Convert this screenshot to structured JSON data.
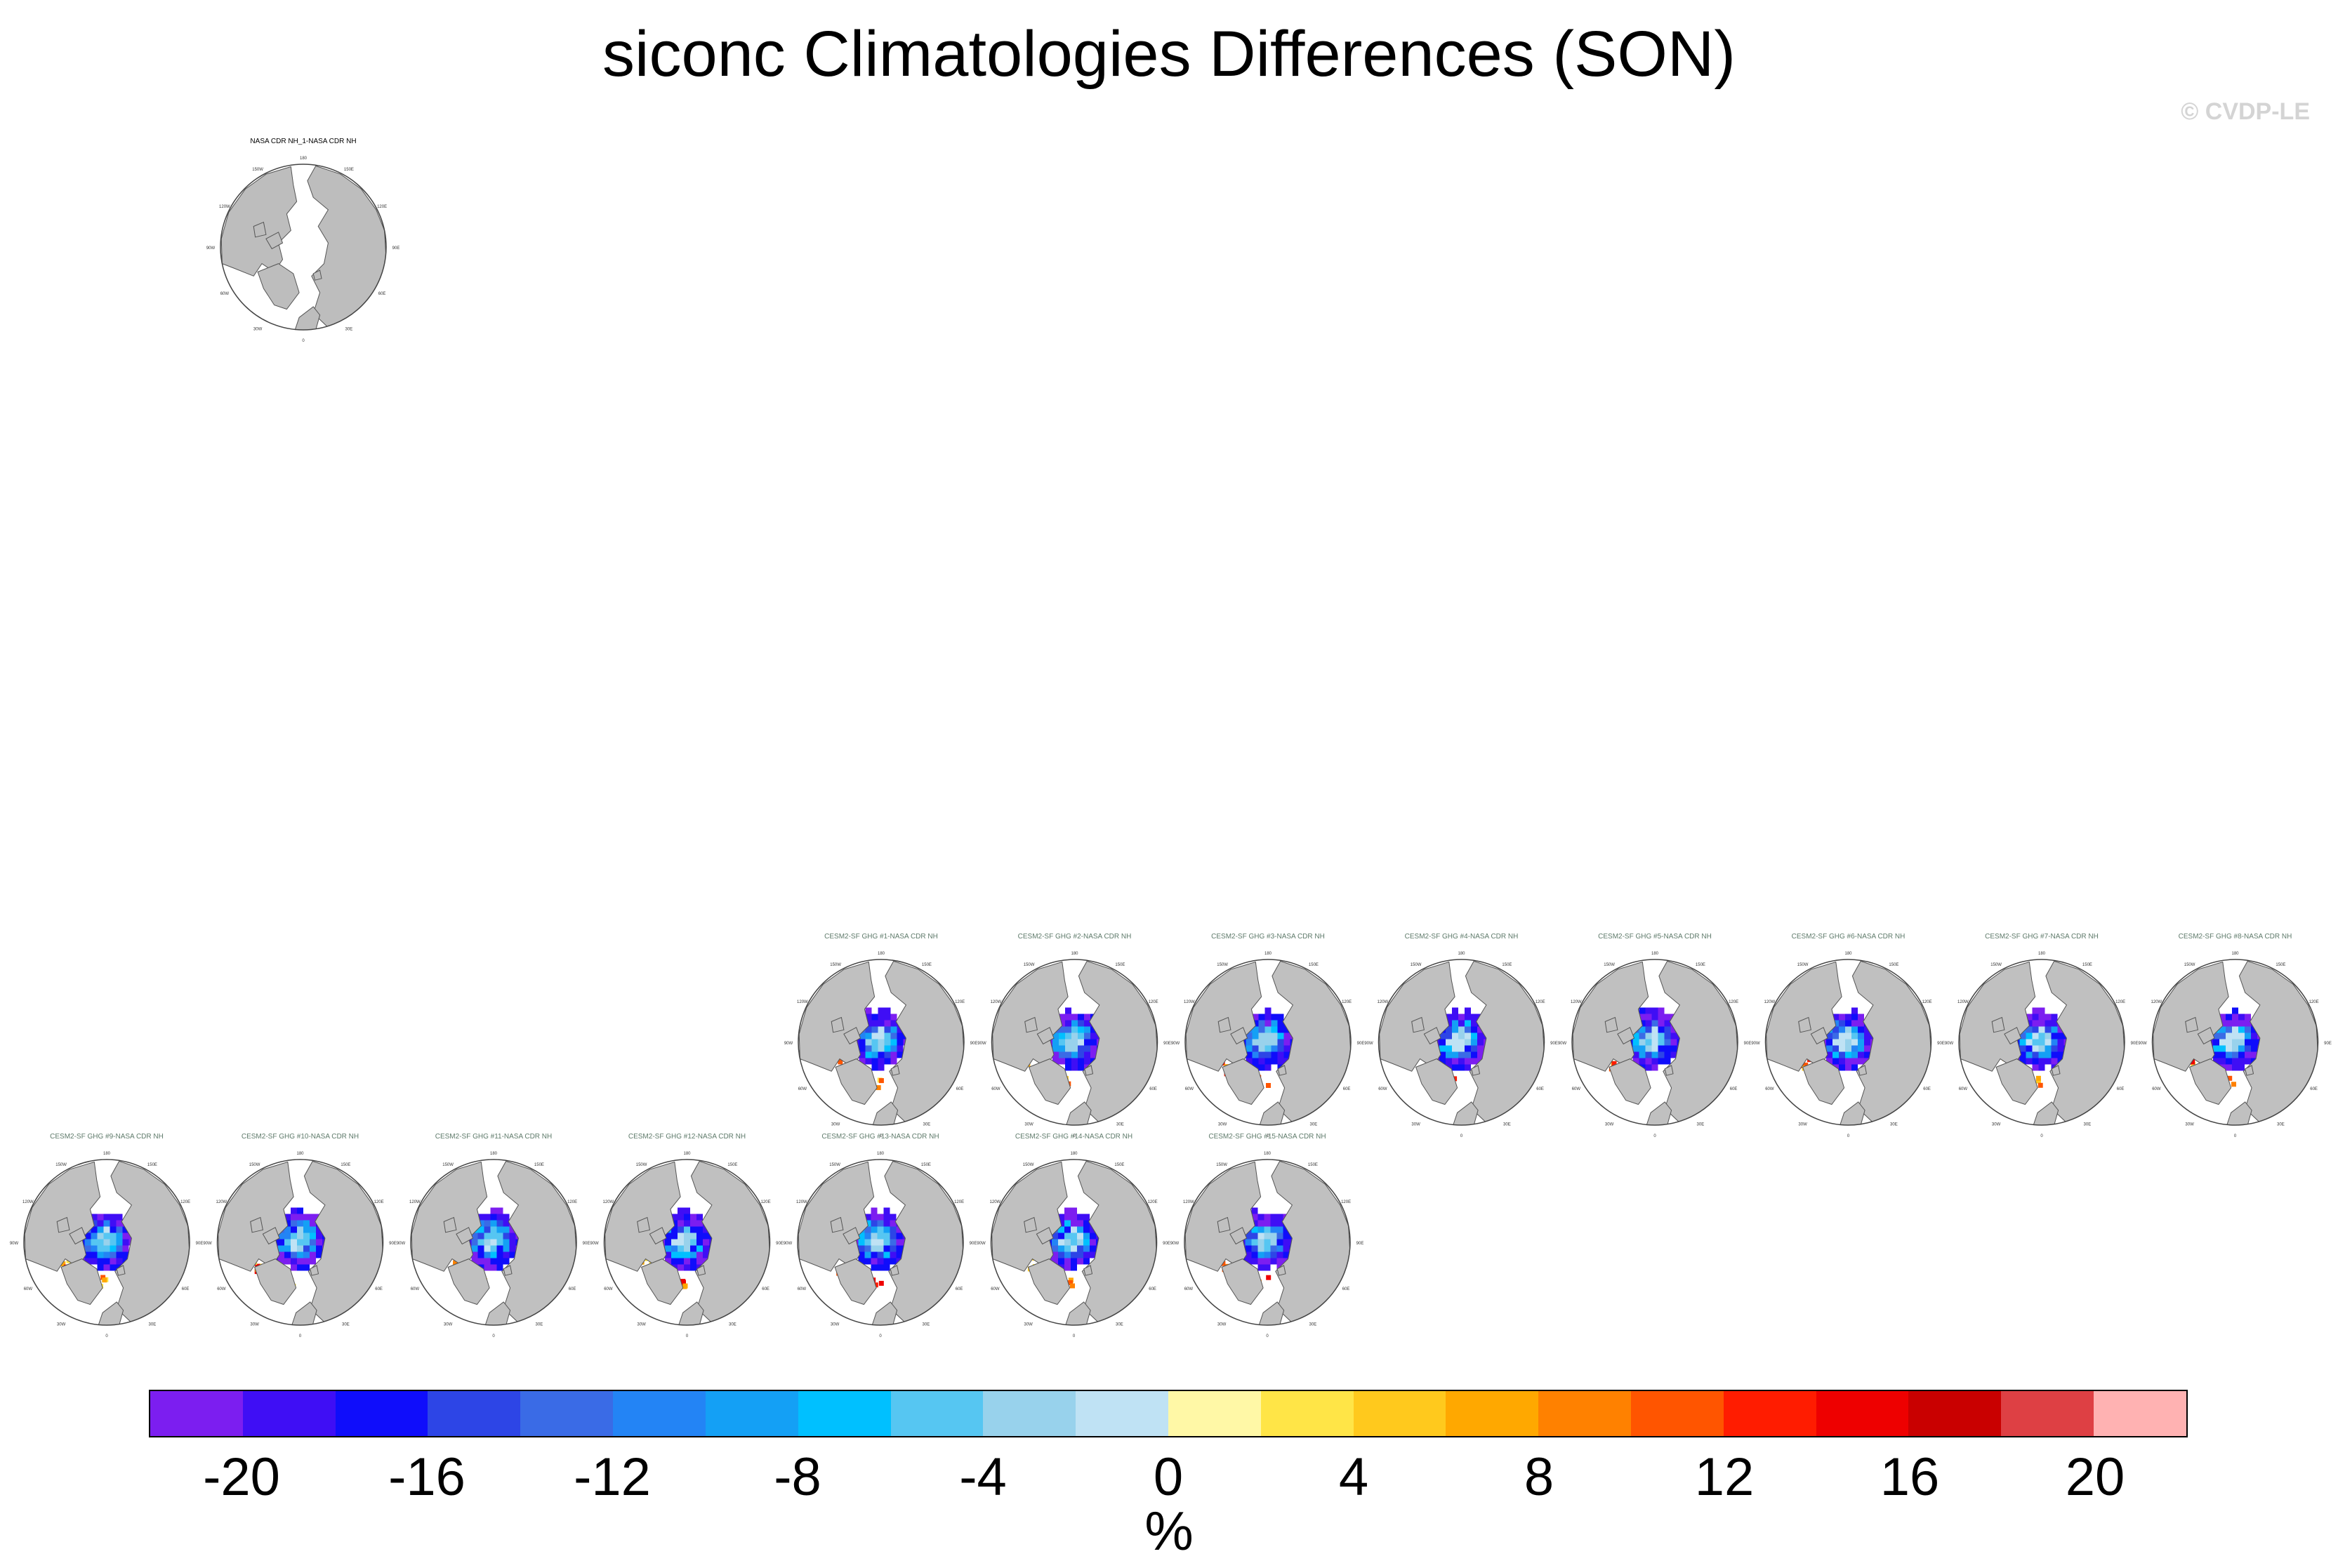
{
  "title": "siconc Climatologies Differences (SON)",
  "watermark": "© CVDP-LE",
  "chart_data": {
    "type": "heatmap",
    "projection": "north polar stereographic",
    "panels": [
      {
        "title": "NASA CDR NH_1-NASA CDR NH",
        "kind": "obs"
      },
      {
        "title": "CESM2-SF GHG #1-NASA CDR NH",
        "kind": "member"
      },
      {
        "title": "CESM2-SF GHG #2-NASA CDR NH",
        "kind": "member"
      },
      {
        "title": "CESM2-SF GHG #3-NASA CDR NH",
        "kind": "member"
      },
      {
        "title": "CESM2-SF GHG #4-NASA CDR NH",
        "kind": "member"
      },
      {
        "title": "CESM2-SF GHG #5-NASA CDR NH",
        "kind": "member"
      },
      {
        "title": "CESM2-SF GHG #6-NASA CDR NH",
        "kind": "member"
      },
      {
        "title": "CESM2-SF GHG #7-NASA CDR NH",
        "kind": "member"
      },
      {
        "title": "CESM2-SF GHG #8-NASA CDR NH",
        "kind": "member"
      },
      {
        "title": "CESM2-SF GHG #9-NASA CDR NH",
        "kind": "member"
      },
      {
        "title": "CESM2-SF GHG #10-NASA CDR NH",
        "kind": "member"
      },
      {
        "title": "CESM2-SF GHG #11-NASA CDR NH",
        "kind": "member"
      },
      {
        "title": "CESM2-SF GHG #12-NASA CDR NH",
        "kind": "member"
      },
      {
        "title": "CESM2-SF GHG #13-NASA CDR NH",
        "kind": "member"
      },
      {
        "title": "CESM2-SF GHG #14-NASA CDR NH",
        "kind": "member"
      },
      {
        "title": "CESM2-SF GHG #15-NASA CDR NH",
        "kind": "member"
      }
    ],
    "lon_labels": [
      "180",
      "150E",
      "150W",
      "120E",
      "120W",
      "90E",
      "90W",
      "60E",
      "60W",
      "30E",
      "30W",
      "0"
    ],
    "colorbar": {
      "label": "%",
      "ticks": [
        "-20",
        "-16",
        "-12",
        "-8",
        "-4",
        "0",
        "4",
        "8",
        "12",
        "16",
        "20"
      ],
      "tick_values": [
        -20,
        -16,
        -12,
        -8,
        -4,
        0,
        4,
        8,
        12,
        16,
        20
      ],
      "levels": [
        -22,
        -20,
        -18,
        -16,
        -14,
        -12,
        -10,
        -8,
        -6,
        -4,
        -2,
        0,
        2,
        4,
        6,
        8,
        10,
        12,
        14,
        16,
        18,
        20,
        22
      ],
      "colors": [
        "#7c1ef0",
        "#3f0ef5",
        "#0f0dfb",
        "#2d45e6",
        "#3a6be6",
        "#2384f5",
        "#14a0f5",
        "#00c0ff",
        "#56c6f2",
        "#98d2ec",
        "#bfe2f4",
        "#fff8a6",
        "#ffe547",
        "#ffc91d",
        "#ffa800",
        "#ff8100",
        "#ff5500",
        "#ff1c00",
        "#ee0000",
        "#c90000",
        "#de4044",
        "#ffb2b2"
      ]
    },
    "land_color": "#c0c0c0",
    "ocean_color": "#ffffff"
  }
}
